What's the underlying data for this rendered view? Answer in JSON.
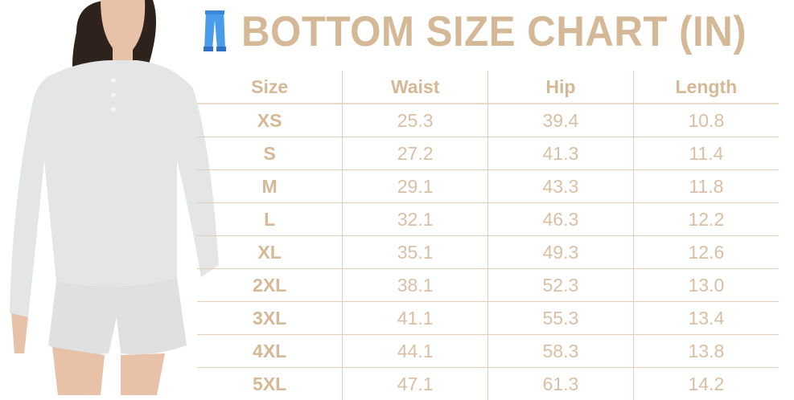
{
  "title": "BOTTOM SIZE CHART (IN)",
  "title_icon": "jeans-icon",
  "colors": {
    "accent": "#d5b896",
    "divider": "#e3cfb9",
    "icon": "#3b8fe0"
  },
  "table": {
    "headers": [
      "Size",
      "Waist",
      "Hip",
      "Length"
    ],
    "rows": [
      [
        "XS",
        "25.3",
        "39.4",
        "10.8"
      ],
      [
        "S",
        "27.2",
        "41.3",
        "11.4"
      ],
      [
        "M",
        "29.1",
        "43.3",
        "11.8"
      ],
      [
        "L",
        "32.1",
        "46.3",
        "12.2"
      ],
      [
        "XL",
        "35.1",
        "49.3",
        "12.6"
      ],
      [
        "2XL",
        "38.1",
        "52.3",
        "13.0"
      ],
      [
        "3XL",
        "41.1",
        "55.3",
        "13.4"
      ],
      [
        "4XL",
        "44.1",
        "58.3",
        "13.8"
      ],
      [
        "5XL",
        "47.1",
        "61.3",
        "14.2"
      ]
    ]
  }
}
